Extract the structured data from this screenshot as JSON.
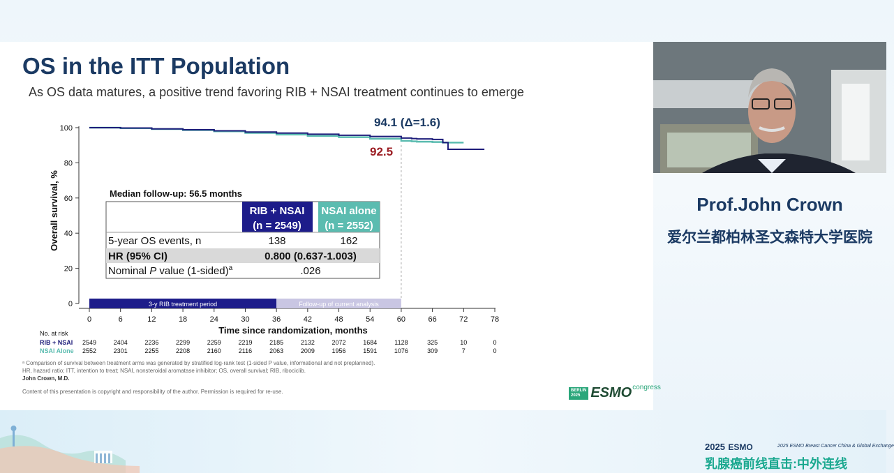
{
  "slide": {
    "title": "OS in the ITT Population",
    "subtitle": "As OS data matures, a positive trend favoring RIB + NSAI treatment continues to emerge",
    "footnote_1": "ᵃ Comparison of survival between treatment arms was generated by stratified log-rank test (1-sided P value, informational and not preplanned).",
    "footnote_2": "HR, hazard ratio; ITT, intention to treat; NSAI, nonsteroidal aromatase inhibitor; OS, overall survival; RIB, ribociclib.",
    "author": "John Crown, M.D.",
    "copyright": "Content of this presentation is copyright and responsibility of the author. Permission is required for re-use.",
    "esmo_city": "BERLIN",
    "esmo_year": "2025",
    "esmo_logo": "ESMO",
    "esmo_congress": "congress"
  },
  "chart_data": {
    "type": "line",
    "ylabel": "Overall survival, %",
    "xlabel": "Time since randomization, months",
    "ylim": [
      0,
      100
    ],
    "xlim": [
      0,
      78
    ],
    "x_ticks": [
      0,
      6,
      12,
      18,
      24,
      30,
      36,
      42,
      48,
      54,
      60,
      66,
      72,
      78
    ],
    "y_ticks": [
      0,
      20,
      40,
      60,
      80,
      100
    ],
    "series": [
      {
        "name": "RIB + NSAI",
        "color": "#1d1c7a",
        "x": [
          0,
          6,
          12,
          18,
          24,
          30,
          36,
          42,
          48,
          54,
          60,
          62,
          63,
          66,
          68,
          69,
          70,
          72,
          76
        ],
        "y": [
          100,
          99.8,
          99.3,
          98.8,
          98.2,
          97.5,
          96.9,
          96.3,
          95.7,
          95.0,
          94.1,
          93.8,
          93.6,
          93.3,
          91.5,
          87.7,
          87.7,
          87.7,
          87.7
        ]
      },
      {
        "name": "NSAI Alone",
        "color": "#5bbcb0",
        "x": [
          0,
          6,
          12,
          18,
          24,
          30,
          36,
          42,
          48,
          54,
          60,
          62,
          63,
          66,
          68,
          72
        ],
        "y": [
          100,
          99.7,
          99.2,
          98.6,
          97.9,
          97.0,
          96.1,
          95.3,
          94.6,
          93.7,
          92.5,
          92.2,
          92.0,
          91.8,
          91.5,
          91.5
        ]
      }
    ],
    "annotations": {
      "rib_label": "94.1 (Δ=1.6)",
      "nsai_label": "92.5",
      "marker_x": 60
    },
    "period_bars": {
      "treatment": {
        "label": "3-y RIB treatment period",
        "x_start": 0,
        "x_end": 36
      },
      "followup": {
        "label": "Follow-up of current analysis",
        "x_start": 36,
        "x_end": 60
      }
    },
    "inset_table": {
      "title": "Median follow-up: 56.5 months",
      "col1_line1": "RIB + NSAI",
      "col1_line2": "(n = 2549)",
      "col2_line1": "NSAI alone",
      "col2_line2": "(n = 2552)",
      "row1_label": "5-year OS events, n",
      "row1_v1": "138",
      "row1_v2": "162",
      "row2_label": "HR (95% CI)",
      "row2_value": "0.800 (0.637-1.003)",
      "row3_label_pre": "Nominal ",
      "row3_label_p": "P",
      "row3_label_post": " value (1-sided)",
      "row3_sup": "a",
      "row3_value": ".026",
      "col1_color": "#1d1c8a",
      "col2_color": "#5bbcb0"
    },
    "at_risk": {
      "title": "No. at risk",
      "rows": [
        {
          "label": "RIB + NSAI",
          "color": "#1d1c7a",
          "values": [
            "2549",
            "2404",
            "2236",
            "2299",
            "2259",
            "2219",
            "2185",
            "2132",
            "2072",
            "1684",
            "1128",
            "325",
            "10",
            "0"
          ]
        },
        {
          "label": "NSAI Alone",
          "color": "#5bbcb0",
          "values": [
            "2552",
            "2301",
            "2255",
            "2208",
            "2160",
            "2116",
            "2063",
            "2009",
            "1956",
            "1591",
            "1076",
            "309",
            "7",
            "0"
          ]
        }
      ]
    }
  },
  "speaker": {
    "name": "Prof.John Crown",
    "organization": "爱尔兰都柏林圣文森特大学医院"
  },
  "brand": {
    "year": "2025",
    "esmo": "ESMO",
    "tagline": "2025 ESMO Breast Cancer China & Global Exchange",
    "chinese": "乳腺癌前线直击:中外连线"
  }
}
